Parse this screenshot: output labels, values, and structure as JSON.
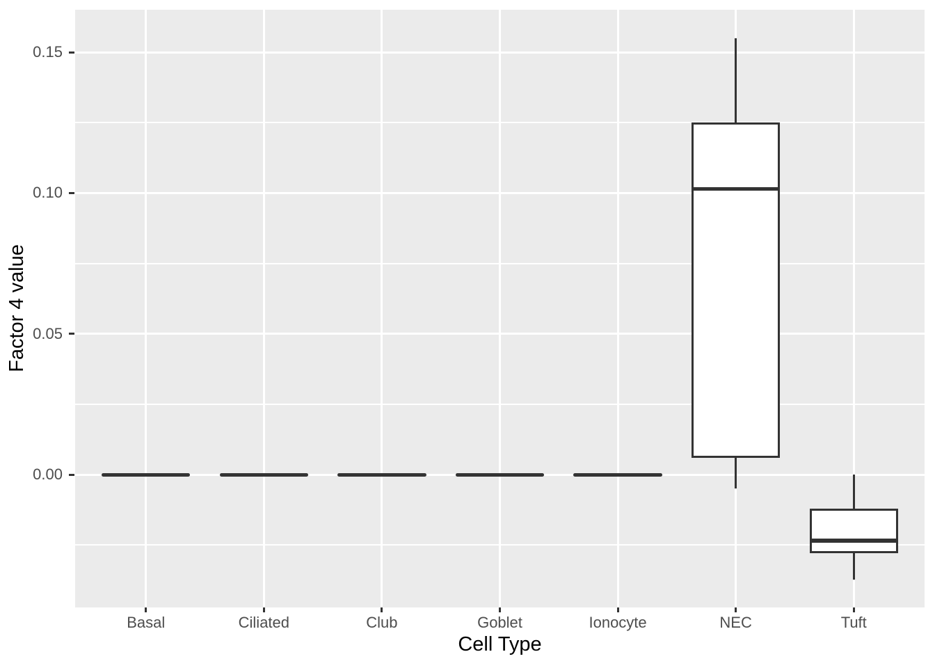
{
  "chart_data": {
    "type": "boxplot",
    "title": "",
    "xlabel": "Cell Type",
    "ylabel": "Factor 4 value",
    "legend": "none",
    "grid": true,
    "categories": [
      "Basal",
      "Ciliated",
      "Club",
      "Goblet",
      "Ionocyte",
      "NEC",
      "Tuft"
    ],
    "series": [
      {
        "name": "Basal",
        "min": 0,
        "q1": 0,
        "median": 0,
        "q3": 0,
        "max": 0
      },
      {
        "name": "Ciliated",
        "min": 0,
        "q1": 0,
        "median": 0,
        "q3": 0,
        "max": 0
      },
      {
        "name": "Club",
        "min": 0,
        "q1": 0,
        "median": 0,
        "q3": 0,
        "max": 0
      },
      {
        "name": "Goblet",
        "min": 0,
        "q1": 0,
        "median": 0,
        "q3": 0,
        "max": 0
      },
      {
        "name": "Ionocyte",
        "min": 0,
        "q1": 0,
        "median": 0,
        "q3": 0,
        "max": 0
      },
      {
        "name": "NEC",
        "min": -0.005,
        "q1": 0.006,
        "median": 0.1015,
        "q3": 0.125,
        "max": 0.155
      },
      {
        "name": "Tuft",
        "min": -0.0373,
        "q1": -0.028,
        "median": -0.0235,
        "q3": -0.012,
        "max": 0.0
      }
    ],
    "y_axis": {
      "ticks": [
        0,
        0.05,
        0.1,
        0.15
      ],
      "tick_labels": [
        "0.00",
        "0.05",
        "0.10",
        "0.15"
      ],
      "minor_ticks": [
        -0.025,
        0.025,
        0.075,
        0.125
      ],
      "ylim": [
        -0.0472,
        0.1651
      ]
    },
    "x_axis": {
      "positions": [
        1,
        2,
        3,
        4,
        5,
        6,
        7
      ],
      "xlim": [
        0.4,
        7.6
      ],
      "box_width": 0.75
    },
    "style": {
      "panel_bg": "#EBEBEB",
      "grid_color": "#FFFFFF",
      "box_fill": "#FFFFFF",
      "box_stroke": "#333333",
      "tick_color": "#333333",
      "tick_label_color": "#4D4D4D",
      "axis_title_color": "#000000"
    }
  }
}
